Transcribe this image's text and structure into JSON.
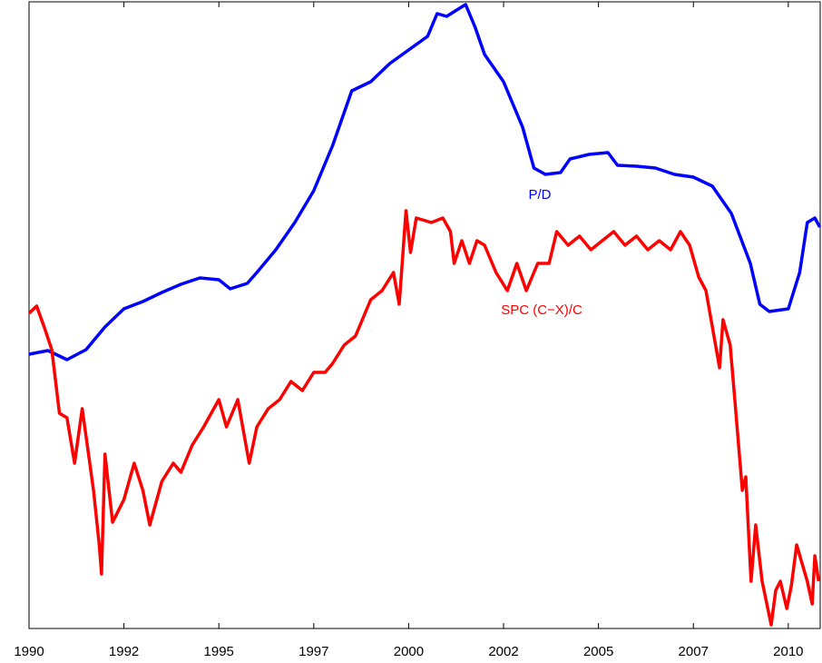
{
  "chart_data": {
    "type": "line",
    "xlim": [
      1990,
      2010.84
    ],
    "ylim": [
      0,
      690
    ],
    "xticks": [
      1990,
      {
        "value": 1992.5,
        "label": "1992"
      },
      {
        "value": 1995,
        "label": "1995"
      },
      {
        "value": 1997.5,
        "label": "1997"
      },
      2000,
      {
        "value": 2002.5,
        "label": "2002"
      },
      2005,
      {
        "value": 2007.5,
        "label": "2007"
      },
      2010
    ],
    "annotations": [
      "P/D",
      "SPC (C−X)/C"
    ],
    "series": [
      {
        "name": "P/D",
        "color": "#0000ff",
        "x": [
          1990,
          1990.5,
          1991,
          1991.5,
          1992,
          1992.5,
          1993,
          1993.5,
          1994,
          1994.5,
          1995,
          1995.3,
          1995.75,
          1996,
          1996.5,
          1997,
          1997.5,
          1998,
          1998.5,
          1999,
          1999.5,
          2000,
          2000.5,
          2000.75,
          2001,
          2001.5,
          2001.75,
          2002,
          2002.5,
          2003,
          2003.3,
          2003.6,
          2004,
          2004.25,
          2004.75,
          2005.25,
          2005.5,
          2006,
          2006.5,
          2007,
          2007.5,
          2008,
          2008.5,
          2009,
          2009.25,
          2009.5,
          2010,
          2010.3,
          2010.5,
          2010.7,
          2010.83
        ],
        "values": [
          302,
          306,
          296,
          307,
          332,
          352,
          360,
          370,
          379,
          386,
          384,
          374,
          380,
          392,
          417,
          447,
          482,
          532,
          592,
          602,
          622,
          637,
          652,
          677,
          674,
          687,
          662,
          632,
          602,
          552,
          507,
          500,
          502,
          517,
          522,
          524,
          510,
          509,
          507,
          500,
          497,
          487,
          457,
          402,
          357,
          349,
          352,
          392,
          447,
          452,
          442
        ]
      },
      {
        "name": "SPC (C−X)/C",
        "color": "#ff0000",
        "x": [
          1990,
          1990.2,
          1990.4,
          1990.6,
          1990.8,
          1991,
          1991.2,
          1991.4,
          1991.5,
          1991.7,
          1991.85,
          1991.91,
          1992,
          1992.2,
          1992.5,
          1992.77,
          1993,
          1993.18,
          1993.5,
          1993.8,
          1994,
          1994.3,
          1994.6,
          1995,
          1995.2,
          1995.5,
          1995.8,
          1996,
          1996.3,
          1996.6,
          1996.9,
          1997.2,
          1997.5,
          1997.8,
          1998,
          1998.3,
          1998.6,
          1999,
          1999.3,
          1999.6,
          1999.75,
          1999.93,
          2000.05,
          2000.2,
          2000.6,
          2000.9,
          2001.1,
          2001.2,
          2001.4,
          2001.6,
          2001.8,
          2002,
          2002.3,
          2002.6,
          2002.85,
          2003.1,
          2003.4,
          2003.7,
          2003.9,
          2004.2,
          2004.5,
          2004.8,
          2005.1,
          2005.4,
          2005.7,
          2006,
          2006.3,
          2006.6,
          2006.9,
          2007.16,
          2007.4,
          2007.64,
          2007.83,
          2008.19,
          2008.28,
          2008.47,
          2008.59,
          2008.79,
          2008.88,
          2009.02,
          2009.14,
          2009.31,
          2009.55,
          2009.67,
          2009.79,
          2009.96,
          2010.08,
          2010.22,
          2010.36,
          2010.5,
          2010.63,
          2010.7,
          2010.8
        ],
        "values": [
          347,
          355,
          332,
          307,
          237,
          232,
          182,
          242,
          212,
          152,
          92,
          60,
          192,
          117,
          142,
          182,
          152,
          114,
          162,
          182,
          172,
          202,
          222,
          252,
          222,
          252,
          182,
          222,
          242,
          252,
          272,
          262,
          282,
          282,
          292,
          312,
          322,
          362,
          372,
          392,
          357,
          460,
          414,
          452,
          447,
          452,
          437,
          402,
          427,
          402,
          427,
          422,
          392,
          372,
          402,
          372,
          402,
          402,
          437,
          422,
          432,
          417,
          427,
          437,
          422,
          432,
          417,
          427,
          417,
          437,
          422,
          387,
          372,
          287,
          340,
          312,
          252,
          152,
          167,
          52,
          114,
          52,
          4,
          42,
          52,
          22,
          47,
          92,
          72,
          52,
          27,
          80,
          52
        ]
      }
    ]
  }
}
